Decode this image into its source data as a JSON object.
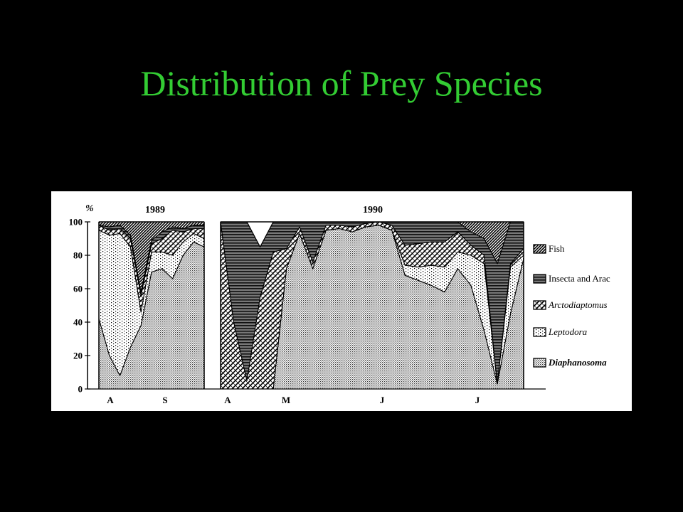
{
  "slide": {
    "title": "Distribution of Prey Species"
  },
  "chart_data": {
    "type": "area",
    "stacked": true,
    "y_unit_label": "%",
    "ylim": [
      0,
      100
    ],
    "y_ticks": [
      "0",
      "20",
      "40",
      "60",
      "80",
      "100"
    ],
    "grid": false,
    "legend_position": "right",
    "legend": [
      {
        "name": "Fish",
        "pattern": "hatch-diagonal"
      },
      {
        "name": "Insecta and Arac",
        "pattern": "hatch-horizontal"
      },
      {
        "name": "Arctodiaptomus",
        "pattern": "hatch-cross"
      },
      {
        "name": "Leptodora",
        "pattern": "sparse-dots"
      },
      {
        "name": "Diaphanosoma",
        "pattern": "dense-dots"
      }
    ],
    "panels": [
      {
        "year": "1989",
        "month_labels": [
          "A",
          "S"
        ],
        "sample_index": [
          0,
          1,
          2,
          3,
          4,
          5,
          6,
          7,
          8,
          9,
          10
        ],
        "series": [
          {
            "name": "Diaphanosoma",
            "values": [
              42,
              20,
              8,
              25,
              38,
              70,
              72,
              66,
              80,
              88,
              85
            ]
          },
          {
            "name": "Leptodora",
            "values": [
              53,
              72,
              85,
              60,
              8,
              12,
              10,
              14,
              8,
              5,
              5
            ]
          },
          {
            "name": "Arctodiaptomus",
            "values": [
              3,
              3,
              3,
              5,
              10,
              5,
              8,
              15,
              6,
              3,
              6
            ]
          },
          {
            "name": "Insecta and Arac",
            "values": [
              0,
              2,
              2,
              2,
              2,
              2,
              4,
              2,
              2,
              2,
              2
            ]
          },
          {
            "name": "Fish",
            "values": [
              2,
              3,
              2,
              8,
              42,
              11,
              6,
              3,
              4,
              2,
              2
            ]
          }
        ]
      },
      {
        "year": "1990",
        "month_labels": [
          "A",
          "M",
          "J",
          "J"
        ],
        "sample_index": [
          0,
          1,
          2,
          3,
          4,
          5,
          6,
          7,
          8,
          9,
          10,
          11,
          12,
          13,
          14,
          15,
          16,
          17,
          18,
          19,
          20,
          21,
          22,
          23
        ],
        "series": [
          {
            "name": "Diaphanosoma",
            "values": [
              0,
              0,
              0,
              0,
              0,
              72,
              93,
              72,
              95,
              96,
              94,
              97,
              98,
              95,
              68,
              65,
              62,
              58,
              72,
              62,
              35,
              3,
              45,
              78
            ]
          },
          {
            "name": "Leptodora",
            "values": [
              0,
              0,
              0,
              0,
              0,
              0,
              0,
              0,
              0,
              0,
              0,
              0,
              0,
              0,
              6,
              8,
              12,
              15,
              10,
              18,
              40,
              0,
              28,
              2
            ]
          },
          {
            "name": "Arctodiaptomus",
            "values": [
              100,
              40,
              5,
              55,
              82,
              12,
              4,
              4,
              3,
              2,
              3,
              2,
              2,
              3,
              12,
              14,
              14,
              15,
              12,
              6,
              5,
              0,
              2,
              4
            ]
          },
          {
            "name": "Insecta and Arac",
            "values": [
              0,
              60,
              95,
              30,
              18,
              16,
              3,
              24,
              2,
              2,
              3,
              1,
              0,
              2,
              14,
              13,
              12,
              12,
              6,
              8,
              10,
              72,
              25,
              16
            ]
          },
          {
            "name": "Fish",
            "values": [
              0,
              0,
              0,
              0,
              0,
              0,
              0,
              0,
              0,
              0,
              0,
              0,
              0,
              0,
              0,
              0,
              0,
              0,
              0,
              6,
              10,
              25,
              0,
              0
            ]
          }
        ]
      }
    ]
  }
}
